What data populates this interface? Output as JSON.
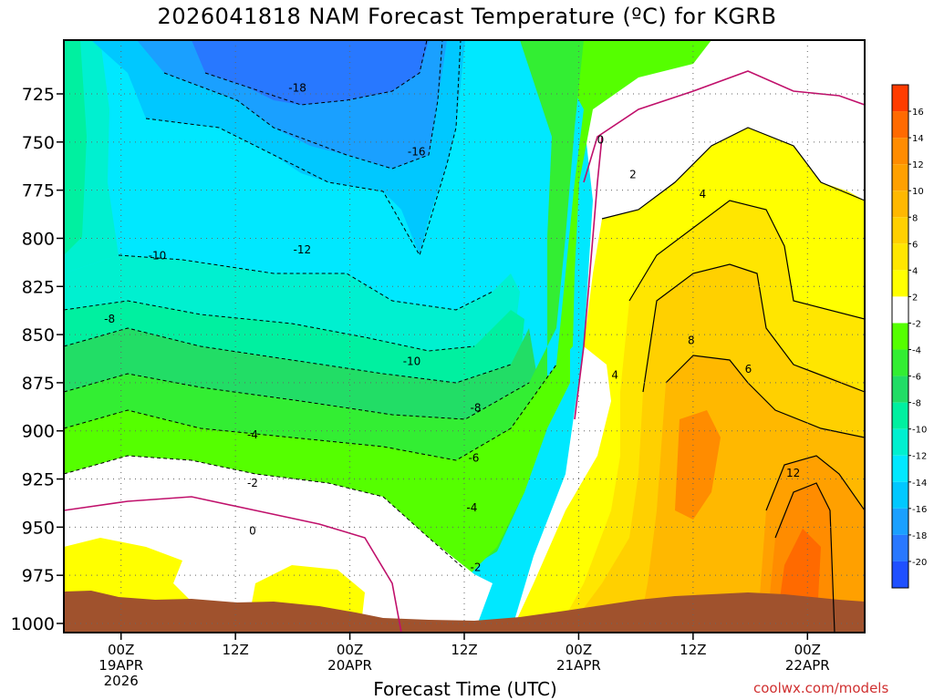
{
  "chart_data": {
    "type": "contour",
    "title": "2026041818 NAM Forecast Temperature (ºC) for KGRB",
    "xlabel": "Forecast Time (UTC)",
    "ylabel": "",
    "y_ticks": [
      725,
      750,
      775,
      800,
      825,
      850,
      875,
      900,
      925,
      950,
      975,
      1000
    ],
    "ylim": [
      1000,
      700
    ],
    "x_ticks": [
      {
        "hour": 6,
        "label": "00Z",
        "sub": "19APR",
        "sub2": "2026"
      },
      {
        "hour": 18,
        "label": "12Z",
        "sub": "",
        "sub2": ""
      },
      {
        "hour": 30,
        "label": "00Z",
        "sub": "20APR",
        "sub2": ""
      },
      {
        "hour": 42,
        "label": "12Z",
        "sub": "",
        "sub2": ""
      },
      {
        "hour": 54,
        "label": "00Z",
        "sub": "21APR",
        "sub2": ""
      },
      {
        "hour": 66,
        "label": "12Z",
        "sub": "",
        "sub2": ""
      },
      {
        "hour": 78,
        "label": "00Z",
        "sub": "22APR",
        "sub2": ""
      }
    ],
    "xlim": [
      0,
      84
    ],
    "grid": true,
    "colorbar": {
      "labels": [
        "16",
        "14",
        "12",
        "10",
        "8",
        "6",
        "4",
        "2",
        "-2",
        "-4",
        "-6",
        "-8",
        "-10",
        "-12",
        "-14",
        "-16",
        "-18",
        "-20"
      ],
      "colors": [
        "#ff3c00",
        "#ff6a00",
        "#ff8c00",
        "#ffa000",
        "#ffb800",
        "#ffd000",
        "#ffe600",
        "#ffff00",
        "#ffffff",
        "#55ff00",
        "#33ee33",
        "#22dd66",
        "#00f0a0",
        "#00f0d0",
        "#00e8ff",
        "#00c8ff",
        "#1aa0ff",
        "#2878ff",
        "#1f50ff"
      ]
    },
    "contour_labels": [
      {
        "t": "-18",
        "hour": 24.5,
        "p": 722
      },
      {
        "t": "-16",
        "hour": 37.0,
        "p": 755
      },
      {
        "t": "-12",
        "hour": 25.0,
        "p": 806
      },
      {
        "t": "-10",
        "hour": 9.8,
        "p": 809
      },
      {
        "t": "-10",
        "hour": 36.5,
        "p": 864
      },
      {
        "t": "-8",
        "hour": 4.8,
        "p": 842
      },
      {
        "t": "-8",
        "hour": 43.2,
        "p": 888
      },
      {
        "t": "-6",
        "hour": 43.0,
        "p": 914
      },
      {
        "t": "-4",
        "hour": 19.8,
        "p": 902
      },
      {
        "t": "-4",
        "hour": 42.8,
        "p": 940
      },
      {
        "t": "-2",
        "hour": 19.8,
        "p": 927
      },
      {
        "t": "-2",
        "hour": 43.2,
        "p": 971
      },
      {
        "t": "0",
        "hour": 19.8,
        "p": 952
      },
      {
        "t": "0",
        "hour": 56.3,
        "p": 749
      },
      {
        "t": "2",
        "hour": 59.7,
        "p": 767
      },
      {
        "t": "4",
        "hour": 67.0,
        "p": 777
      },
      {
        "t": "4",
        "hour": 57.8,
        "p": 871
      },
      {
        "t": "6",
        "hour": 71.8,
        "p": 868
      },
      {
        "t": "8",
        "hour": 65.8,
        "p": 853
      },
      {
        "t": "12",
        "hour": 76.5,
        "p": 922
      }
    ]
  },
  "credit": "coolwx.com/models"
}
